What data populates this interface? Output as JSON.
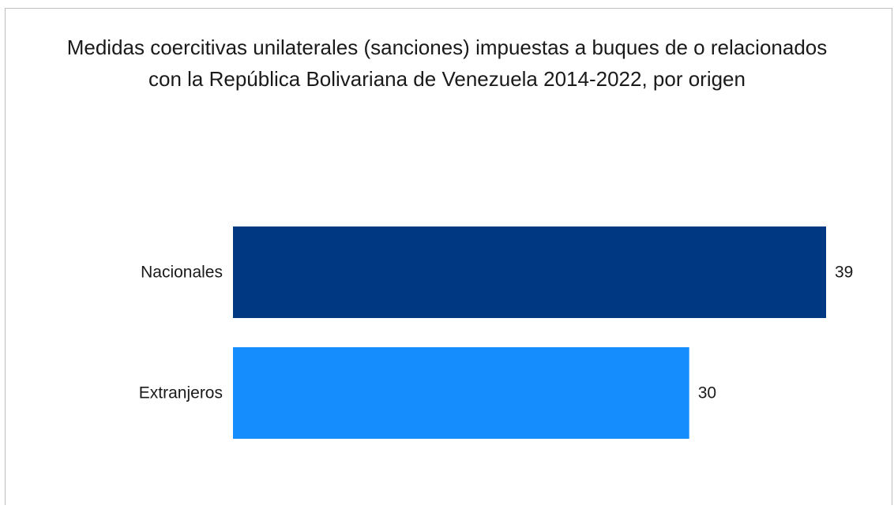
{
  "chart_data": {
    "type": "bar",
    "orientation": "horizontal",
    "title_lines": [
      "Medidas coercitivas unilaterales (sanciones) impuestas a buques de o relacionados",
      "con la República Bolivariana de Venezuela 2014-2022, por origen"
    ],
    "categories": [
      "Nacionales",
      "Extranjeros"
    ],
    "values": [
      39,
      30
    ],
    "colors": [
      "#003882",
      "#168dfd"
    ],
    "xlim": [
      0,
      39
    ],
    "grid": false,
    "legend": "none"
  }
}
